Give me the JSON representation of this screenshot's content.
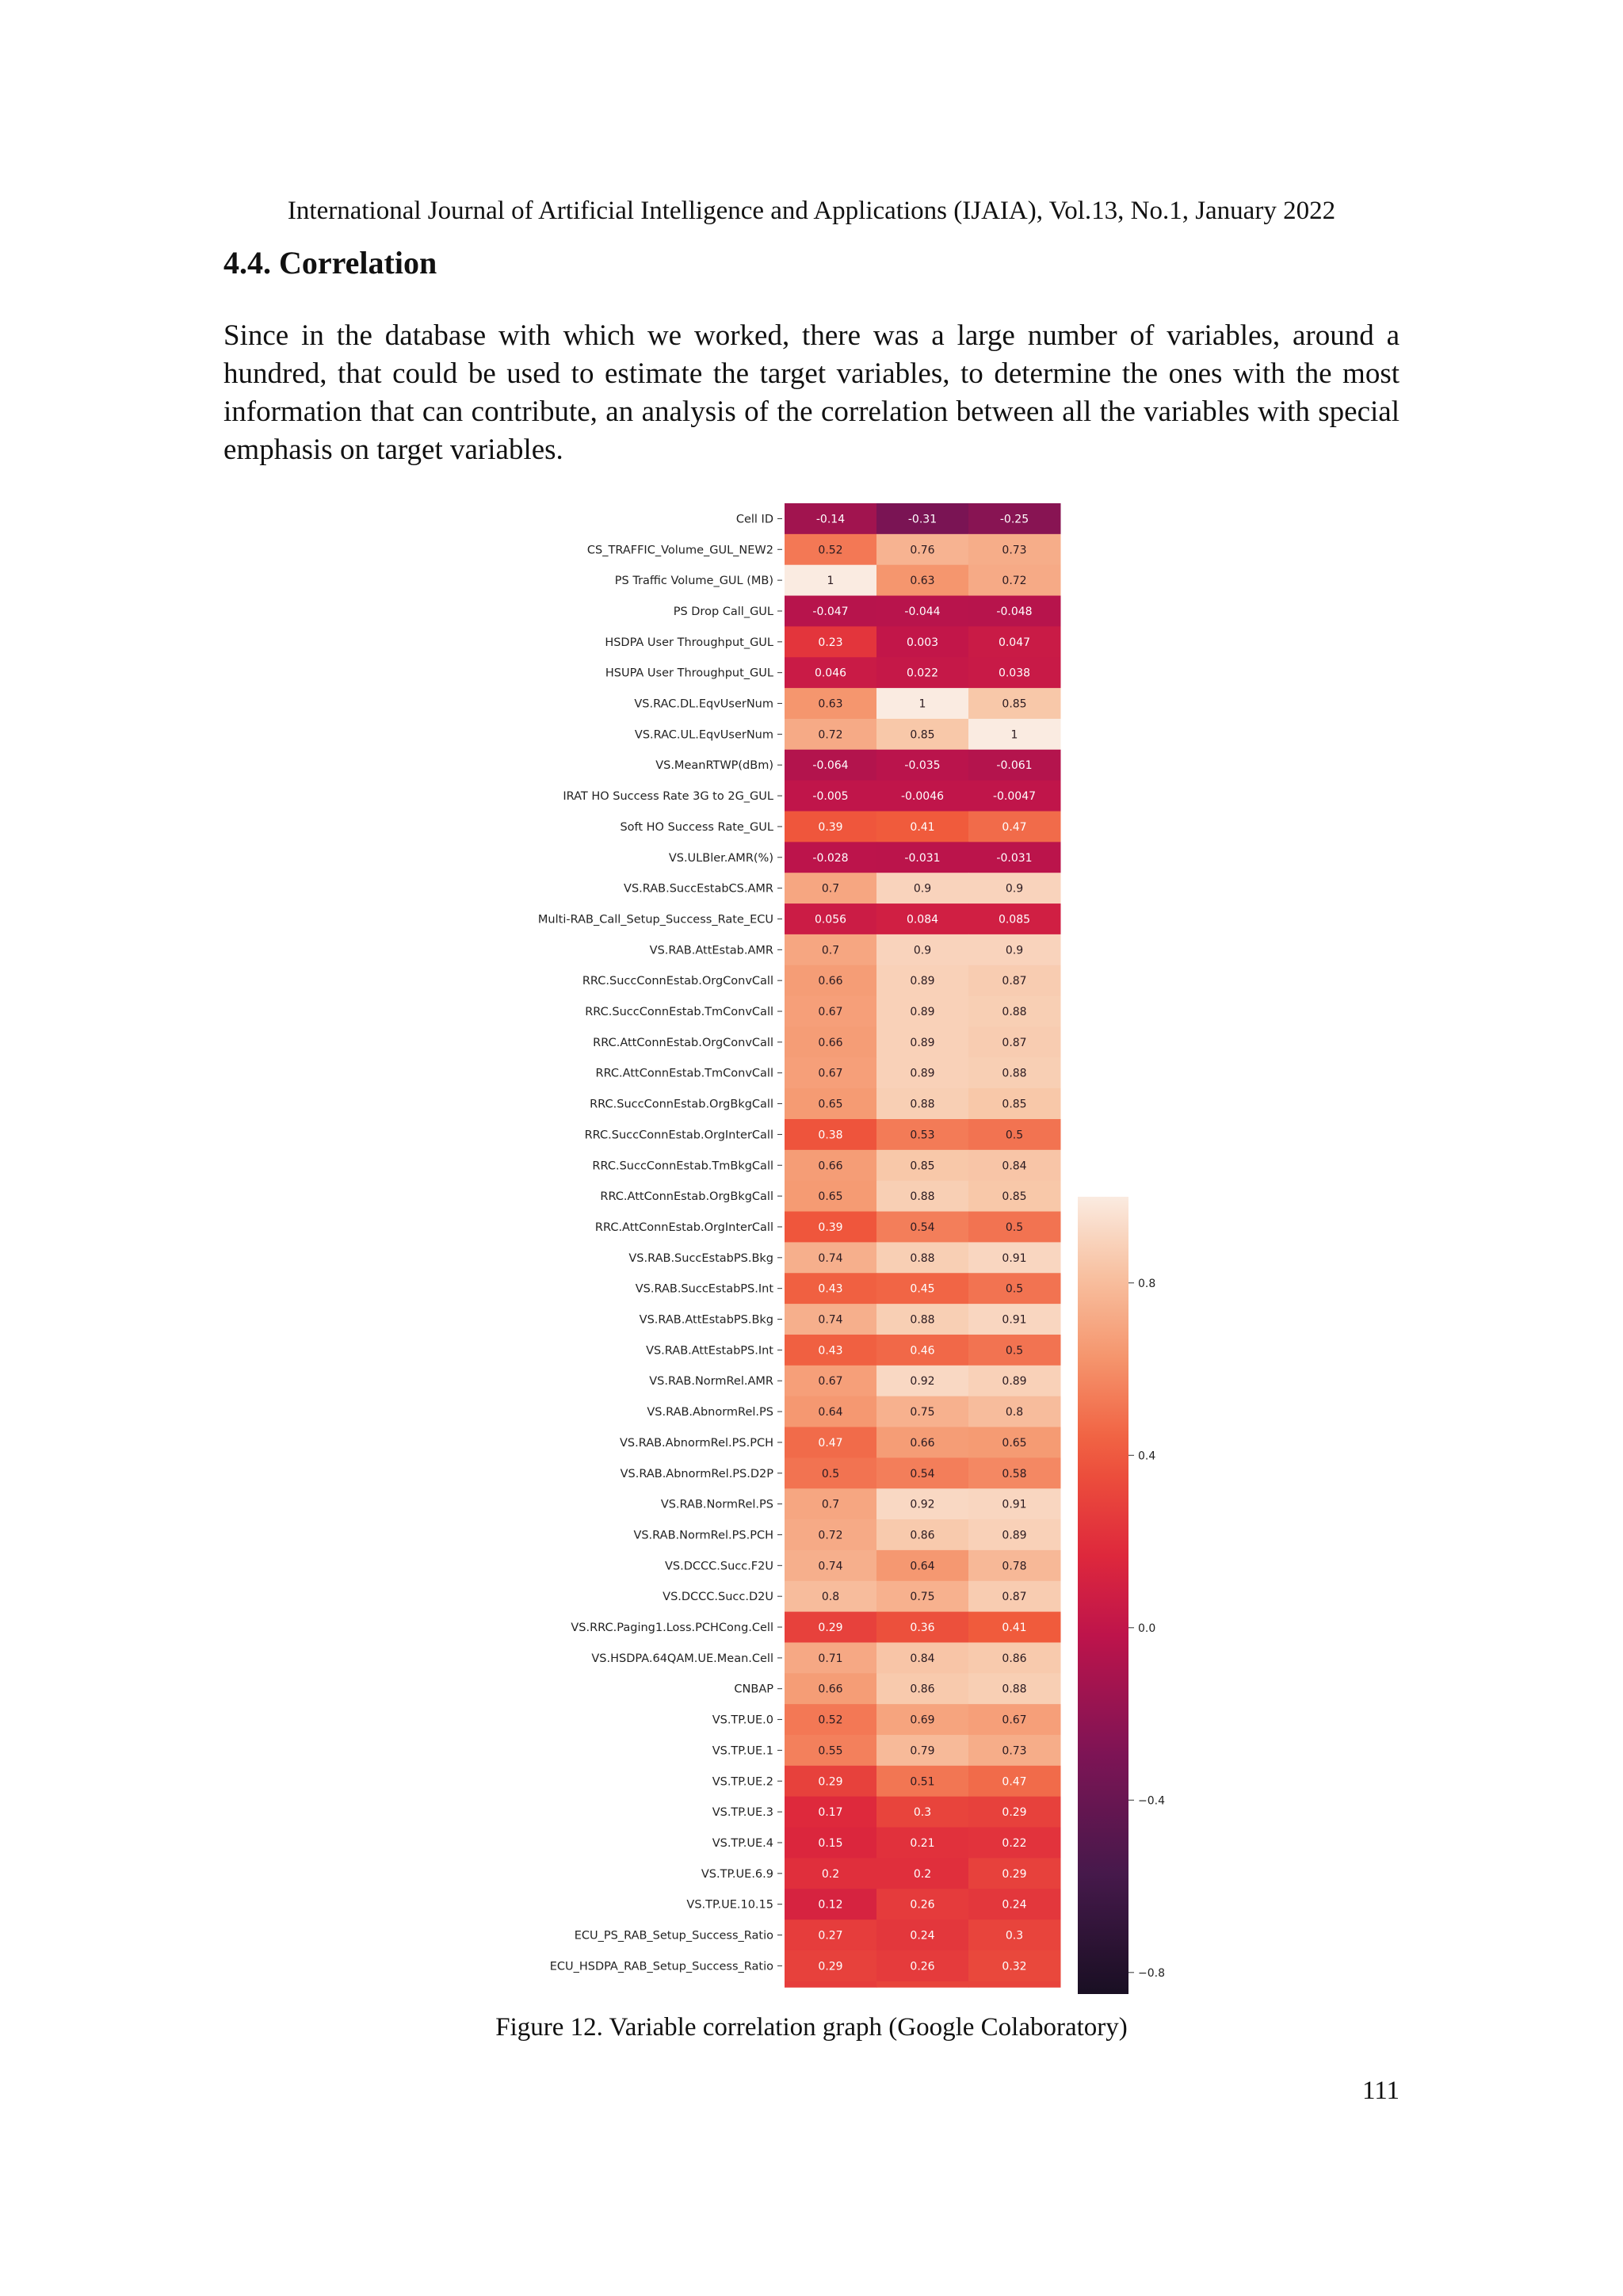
{
  "header": {
    "journal": "International Journal of Artificial Intelligence and Applications (IJAIA), Vol.13, No.1, January 2022"
  },
  "section": {
    "title": "4.4. Correlation"
  },
  "paragraph": "Since in the database with which we worked, there was a large number of variables, around a hundred, that could be used to estimate the target variables, to determine the ones with the most information that can contribute, an analysis of the correlation between all the variables with special emphasis on target variables.",
  "figure": {
    "caption": "Figure 12. Variable correlation graph (Google Colaboratory)"
  },
  "page_number": "111",
  "chart_data": {
    "type": "heatmap",
    "colormap": "rocket",
    "colorbar": {
      "min": -0.85,
      "max": 1.0,
      "ticks": [
        0.8,
        0.4,
        0.0,
        -0.4,
        -0.8
      ],
      "tick_labels": [
        "0.8",
        "0.4",
        "0.0",
        "−0.4",
        "−0.8"
      ]
    },
    "rows": [
      {
        "label": "Cell ID",
        "values": [
          -0.14,
          -0.31,
          -0.25
        ],
        "labels": [
          "-0.14",
          "-0.31",
          "-0.25"
        ]
      },
      {
        "label": "CS_TRAFFIC_Volume_GUL_NEW2",
        "values": [
          0.52,
          0.76,
          0.73
        ],
        "labels": [
          "0.52",
          "0.76",
          "0.73"
        ]
      },
      {
        "label": "PS Traffic Volume_GUL (MB)",
        "values": [
          1,
          0.63,
          0.72
        ],
        "labels": [
          "1",
          "0.63",
          "0.72"
        ]
      },
      {
        "label": "PS Drop Call_GUL",
        "values": [
          -0.047,
          -0.044,
          -0.048
        ],
        "labels": [
          "-0.047",
          "-0.044",
          "-0.048"
        ]
      },
      {
        "label": "HSDPA User Throughput_GUL",
        "values": [
          0.23,
          0.003,
          0.047
        ],
        "labels": [
          "0.23",
          "0.003",
          "0.047"
        ]
      },
      {
        "label": "HSUPA User Throughput_GUL",
        "values": [
          0.046,
          0.022,
          0.038
        ],
        "labels": [
          "0.046",
          "0.022",
          "0.038"
        ]
      },
      {
        "label": "VS.RAC.DL.EqvUserNum",
        "values": [
          0.63,
          1,
          0.85
        ],
        "labels": [
          "0.63",
          "1",
          "0.85"
        ]
      },
      {
        "label": "VS.RAC.UL.EqvUserNum",
        "values": [
          0.72,
          0.85,
          1
        ],
        "labels": [
          "0.72",
          "0.85",
          "1"
        ]
      },
      {
        "label": "VS.MeanRTWP(dBm)",
        "values": [
          -0.064,
          -0.035,
          -0.061
        ],
        "labels": [
          "-0.064",
          "-0.035",
          "-0.061"
        ]
      },
      {
        "label": "IRAT HO Success Rate 3G to 2G_GUL",
        "values": [
          -0.005,
          -0.0046,
          -0.0047
        ],
        "labels": [
          "-0.005",
          "-0.0046",
          "-0.0047"
        ]
      },
      {
        "label": "Soft HO Success Rate_GUL",
        "values": [
          0.39,
          0.41,
          0.47
        ],
        "labels": [
          "0.39",
          "0.41",
          "0.47"
        ]
      },
      {
        "label": "VS.ULBler.AMR(%)",
        "values": [
          -0.028,
          -0.031,
          -0.031
        ],
        "labels": [
          "-0.028",
          "-0.031",
          "-0.031"
        ]
      },
      {
        "label": "VS.RAB.SuccEstabCS.AMR",
        "values": [
          0.7,
          0.9,
          0.9
        ],
        "labels": [
          "0.7",
          "0.9",
          "0.9"
        ]
      },
      {
        "label": "Multi-RAB_Call_Setup_Success_Rate_ECU",
        "values": [
          0.056,
          0.084,
          0.085
        ],
        "labels": [
          "0.056",
          "0.084",
          "0.085"
        ]
      },
      {
        "label": "VS.RAB.AttEstab.AMR",
        "values": [
          0.7,
          0.9,
          0.9
        ],
        "labels": [
          "0.7",
          "0.9",
          "0.9"
        ]
      },
      {
        "label": "RRC.SuccConnEstab.OrgConvCall",
        "values": [
          0.66,
          0.89,
          0.87
        ],
        "labels": [
          "0.66",
          "0.89",
          "0.87"
        ]
      },
      {
        "label": "RRC.SuccConnEstab.TmConvCall",
        "values": [
          0.67,
          0.89,
          0.88
        ],
        "labels": [
          "0.67",
          "0.89",
          "0.88"
        ]
      },
      {
        "label": "RRC.AttConnEstab.OrgConvCall",
        "values": [
          0.66,
          0.89,
          0.87
        ],
        "labels": [
          "0.66",
          "0.89",
          "0.87"
        ]
      },
      {
        "label": "RRC.AttConnEstab.TmConvCall",
        "values": [
          0.67,
          0.89,
          0.88
        ],
        "labels": [
          "0.67",
          "0.89",
          "0.88"
        ]
      },
      {
        "label": "RRC.SuccConnEstab.OrgBkgCall",
        "values": [
          0.65,
          0.88,
          0.85
        ],
        "labels": [
          "0.65",
          "0.88",
          "0.85"
        ]
      },
      {
        "label": "RRC.SuccConnEstab.OrgInterCall",
        "values": [
          0.38,
          0.53,
          0.5
        ],
        "labels": [
          "0.38",
          "0.53",
          "0.5"
        ]
      },
      {
        "label": "RRC.SuccConnEstab.TmBkgCall",
        "values": [
          0.66,
          0.85,
          0.84
        ],
        "labels": [
          "0.66",
          "0.85",
          "0.84"
        ]
      },
      {
        "label": "RRC.AttConnEstab.OrgBkgCall",
        "values": [
          0.65,
          0.88,
          0.85
        ],
        "labels": [
          "0.65",
          "0.88",
          "0.85"
        ]
      },
      {
        "label": "RRC.AttConnEstab.OrgInterCall",
        "values": [
          0.39,
          0.54,
          0.5
        ],
        "labels": [
          "0.39",
          "0.54",
          "0.5"
        ]
      },
      {
        "label": "VS.RAB.SuccEstabPS.Bkg",
        "values": [
          0.74,
          0.88,
          0.91
        ],
        "labels": [
          "0.74",
          "0.88",
          "0.91"
        ]
      },
      {
        "label": "VS.RAB.SuccEstabPS.Int",
        "values": [
          0.43,
          0.45,
          0.5
        ],
        "labels": [
          "0.43",
          "0.45",
          "0.5"
        ]
      },
      {
        "label": "VS.RAB.AttEstabPS.Bkg",
        "values": [
          0.74,
          0.88,
          0.91
        ],
        "labels": [
          "0.74",
          "0.88",
          "0.91"
        ]
      },
      {
        "label": "VS.RAB.AttEstabPS.Int",
        "values": [
          0.43,
          0.46,
          0.5
        ],
        "labels": [
          "0.43",
          "0.46",
          "0.5"
        ]
      },
      {
        "label": "VS.RAB.NormRel.AMR",
        "values": [
          0.67,
          0.92,
          0.89
        ],
        "labels": [
          "0.67",
          "0.92",
          "0.89"
        ]
      },
      {
        "label": "VS.RAB.AbnormRel.PS",
        "values": [
          0.64,
          0.75,
          0.8
        ],
        "labels": [
          "0.64",
          "0.75",
          "0.8"
        ]
      },
      {
        "label": "VS.RAB.AbnormRel.PS.PCH",
        "values": [
          0.47,
          0.66,
          0.65
        ],
        "labels": [
          "0.47",
          "0.66",
          "0.65"
        ]
      },
      {
        "label": "VS.RAB.AbnormRel.PS.D2P",
        "values": [
          0.5,
          0.54,
          0.58
        ],
        "labels": [
          "0.5",
          "0.54",
          "0.58"
        ]
      },
      {
        "label": "VS.RAB.NormRel.PS",
        "values": [
          0.7,
          0.92,
          0.91
        ],
        "labels": [
          "0.7",
          "0.92",
          "0.91"
        ]
      },
      {
        "label": "VS.RAB.NormRel.PS.PCH",
        "values": [
          0.72,
          0.86,
          0.89
        ],
        "labels": [
          "0.72",
          "0.86",
          "0.89"
        ]
      },
      {
        "label": "VS.DCCC.Succ.F2U",
        "values": [
          0.74,
          0.64,
          0.78
        ],
        "labels": [
          "0.74",
          "0.64",
          "0.78"
        ]
      },
      {
        "label": "VS.DCCC.Succ.D2U",
        "values": [
          0.8,
          0.75,
          0.87
        ],
        "labels": [
          "0.8",
          "0.75",
          "0.87"
        ]
      },
      {
        "label": "VS.RRC.Paging1.Loss.PCHCong.Cell",
        "values": [
          0.29,
          0.36,
          0.41
        ],
        "labels": [
          "0.29",
          "0.36",
          "0.41"
        ]
      },
      {
        "label": "VS.HSDPA.64QAM.UE.Mean.Cell",
        "values": [
          0.71,
          0.84,
          0.86
        ],
        "labels": [
          "0.71",
          "0.84",
          "0.86"
        ]
      },
      {
        "label": "CNBAP",
        "values": [
          0.66,
          0.86,
          0.88
        ],
        "labels": [
          "0.66",
          "0.86",
          "0.88"
        ]
      },
      {
        "label": "VS.TP.UE.0",
        "values": [
          0.52,
          0.69,
          0.67
        ],
        "labels": [
          "0.52",
          "0.69",
          "0.67"
        ]
      },
      {
        "label": "VS.TP.UE.1",
        "values": [
          0.55,
          0.79,
          0.73
        ],
        "labels": [
          "0.55",
          "0.79",
          "0.73"
        ]
      },
      {
        "label": "VS.TP.UE.2",
        "values": [
          0.29,
          0.51,
          0.47
        ],
        "labels": [
          "0.29",
          "0.51",
          "0.47"
        ]
      },
      {
        "label": "VS.TP.UE.3",
        "values": [
          0.17,
          0.3,
          0.29
        ],
        "labels": [
          "0.17",
          "0.3",
          "0.29"
        ]
      },
      {
        "label": "VS.TP.UE.4",
        "values": [
          0.15,
          0.21,
          0.22
        ],
        "labels": [
          "0.15",
          "0.21",
          "0.22"
        ]
      },
      {
        "label": "VS.TP.UE.6.9",
        "values": [
          0.2,
          0.2,
          0.29
        ],
        "labels": [
          "0.2",
          "0.2",
          "0.29"
        ]
      },
      {
        "label": "VS.TP.UE.10.15",
        "values": [
          0.12,
          0.26,
          0.24
        ],
        "labels": [
          "0.12",
          "0.26",
          "0.24"
        ]
      },
      {
        "label": "ECU_PS_RAB_Setup_Success_Ratio",
        "values": [
          0.27,
          0.24,
          0.3
        ],
        "labels": [
          "0.27",
          "0.24",
          "0.3"
        ]
      },
      {
        "label": "ECU_HSDPA_RAB_Setup_Success_Ratio",
        "values": [
          0.29,
          0.26,
          0.32
        ],
        "labels": [
          "0.29",
          "0.26",
          "0.32"
        ]
      }
    ]
  }
}
